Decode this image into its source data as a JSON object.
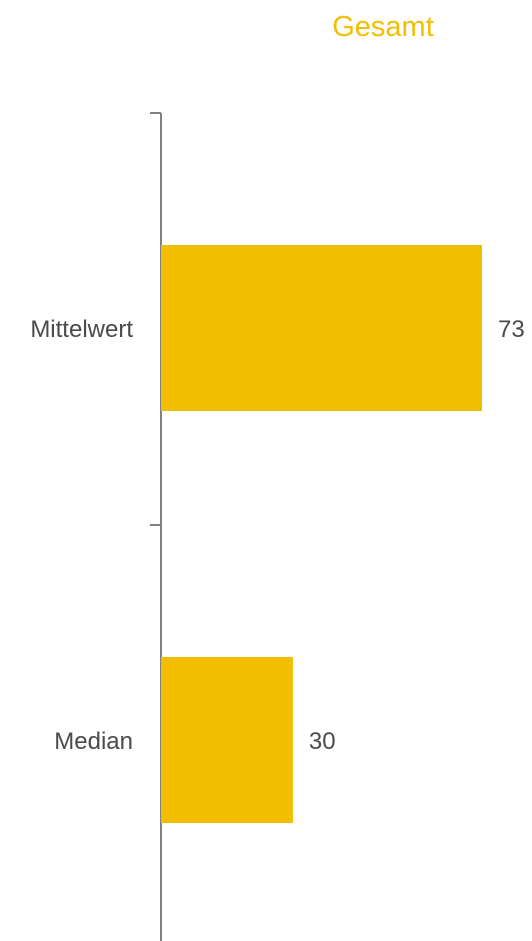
{
  "chart_data": {
    "type": "bar",
    "orientation": "horizontal",
    "title": "Gesamt",
    "categories": [
      "Mittelwert",
      "Median"
    ],
    "values": [
      73,
      30
    ],
    "xlim": [
      0,
      73
    ],
    "grid": false,
    "bar_color": "#F3BE00",
    "axis_color": "#808080",
    "title_color": "#F3BE00"
  }
}
